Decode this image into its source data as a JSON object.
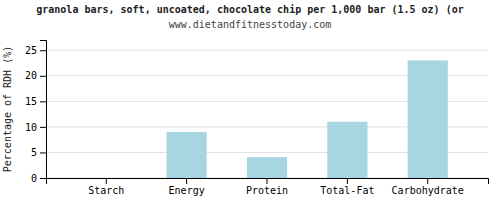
{
  "chart_data": {
    "type": "bar",
    "title": "granola bars, soft, uncoated, chocolate chip per 1,000 bar (1.5 oz) (or",
    "subtitle": "www.dietandfitnesstoday.com",
    "ylabel": "Percentage of RDH (%)",
    "categories": [
      "Starch",
      "Energy",
      "Protein",
      "Total-Fat",
      "Carbohydrate"
    ],
    "values": [
      0,
      9.0,
      4.1,
      11.0,
      23.0
    ],
    "color": "#a8d5e2",
    "ylim": [
      0,
      27
    ],
    "yticks": [
      0,
      5,
      10,
      15,
      20,
      25
    ],
    "grid": true
  }
}
